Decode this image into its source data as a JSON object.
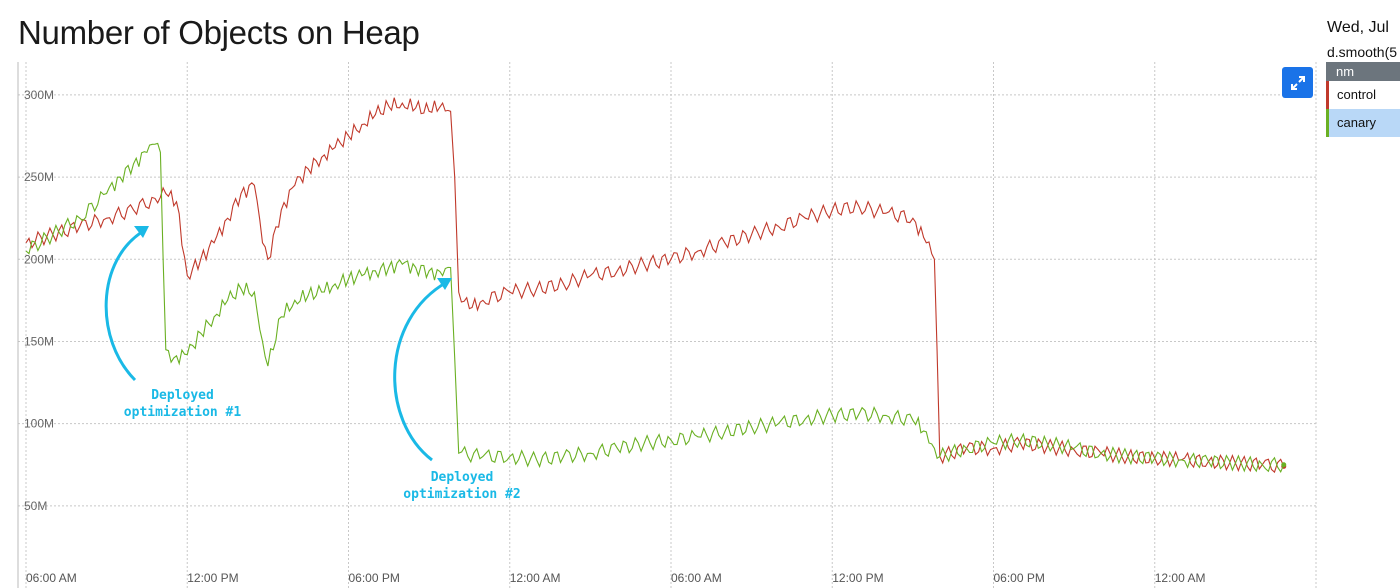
{
  "title": "Number of Objects on Heap",
  "sidebar": {
    "date_text": "Wed, Jul",
    "expression_text": "d.smooth(5",
    "legend_header": "nm",
    "legend_items": [
      {
        "label": "control",
        "color": "#c0392b"
      },
      {
        "label": "canary",
        "color": "#6ab023"
      }
    ]
  },
  "expand_icon": "expand-arrows-icon",
  "annotations": [
    {
      "line1": "Deployed",
      "line2": "optimization #1"
    },
    {
      "line1": "Deployed",
      "line2": "optimization #2"
    }
  ],
  "chart_data": {
    "type": "line",
    "title": "Number of Objects on Heap",
    "y_unit": "M",
    "ylim": [
      0,
      320
    ],
    "y_ticks": [
      50,
      100,
      150,
      200,
      250,
      300
    ],
    "y_tick_labels": [
      "50M",
      "100M",
      "150M",
      "200M",
      "250M",
      "300M"
    ],
    "xlim": [
      0,
      48
    ],
    "x_ticks": [
      0,
      6,
      12,
      18,
      24,
      30,
      36,
      42,
      48
    ],
    "x_tick_labels": [
      "06:00 AM",
      "12:00 PM",
      "06:00 PM",
      "12:00 AM",
      "06:00 AM",
      "12:00 PM",
      "06:00 PM",
      "12:00 AM",
      ""
    ],
    "grid": true,
    "series": [
      {
        "name": "control",
        "color": "#c0392b",
        "x": [
          0,
          1,
          2,
          3,
          4,
          4.8,
          5.2,
          5.6,
          6,
          6.5,
          7,
          7.5,
          8,
          8.5,
          8.8,
          9,
          9.5,
          10,
          10.5,
          11,
          11.5,
          12,
          12.5,
          13,
          13.5,
          14,
          14.5,
          15,
          15.5,
          15.8,
          15.95,
          16.1,
          16.5,
          17,
          18,
          19,
          20,
          21,
          22,
          23,
          24,
          25,
          26,
          27,
          28,
          29,
          30,
          31,
          32,
          33,
          33.5,
          33.8,
          34,
          35,
          36,
          37,
          38,
          39,
          40,
          41,
          42,
          43,
          44,
          45,
          46,
          46.8
        ],
        "y": [
          210,
          215,
          220,
          225,
          230,
          237,
          240,
          235,
          190,
          200,
          210,
          225,
          240,
          245,
          210,
          200,
          230,
          245,
          255,
          262,
          268,
          275,
          282,
          288,
          293,
          295,
          292,
          290,
          295,
          290,
          250,
          180,
          170,
          175,
          180,
          182,
          185,
          190,
          193,
          197,
          200,
          205,
          210,
          215,
          220,
          225,
          230,
          232,
          228,
          225,
          210,
          200,
          80,
          85,
          85,
          88,
          86,
          84,
          82,
          80,
          79,
          78,
          77,
          76,
          75,
          74
        ]
      },
      {
        "name": "canary",
        "color": "#6ab023",
        "x": [
          0,
          1,
          2,
          3,
          3.5,
          4,
          4.5,
          4.8,
          5,
          5.2,
          5.5,
          6,
          6.5,
          7,
          7.5,
          8,
          8.5,
          8.8,
          9,
          9.5,
          10,
          10.5,
          11,
          11.5,
          12,
          12.5,
          13,
          13.5,
          14,
          14.5,
          15,
          15.5,
          15.8,
          15.95,
          16.1,
          17,
          18,
          19,
          20,
          21,
          22,
          23,
          24,
          25,
          26,
          27,
          28,
          29,
          30,
          31,
          32,
          33,
          33.5,
          33.8,
          34,
          35,
          36,
          37,
          38,
          39,
          40,
          41,
          42,
          43,
          44,
          45,
          46,
          46.8
        ],
        "y": [
          205,
          215,
          225,
          240,
          250,
          258,
          265,
          270,
          265,
          145,
          140,
          142,
          155,
          165,
          175,
          182,
          180,
          150,
          135,
          165,
          175,
          178,
          180,
          185,
          188,
          190,
          193,
          195,
          197,
          195,
          193,
          190,
          195,
          140,
          82,
          80,
          80,
          78,
          80,
          82,
          85,
          88,
          90,
          92,
          95,
          98,
          100,
          103,
          105,
          106,
          105,
          102,
          95,
          85,
          80,
          85,
          88,
          90,
          88,
          85,
          82,
          80,
          79,
          78,
          77,
          76,
          75,
          75
        ]
      }
    ]
  }
}
